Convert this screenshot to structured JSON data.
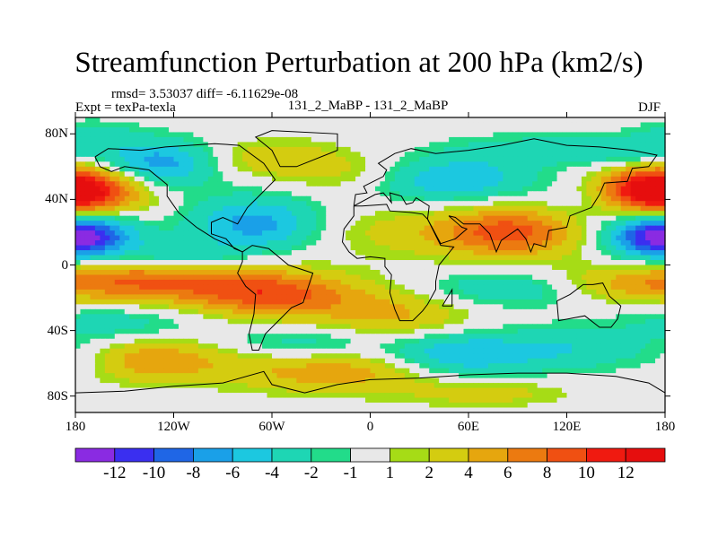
{
  "chart_data": {
    "type": "heatmap",
    "title": "Streamfunction Perturbation at 200 hPa (km2/s)",
    "stats_line": "rmsd= 3.53037 diff= -6.11629e-08",
    "experiment_label": "Expt = texPa-texla",
    "run_label": "131_2_MaBP - 131_2_MaBP",
    "season_label": "DJF",
    "x_ticks": [
      {
        "value": -180,
        "label": "180"
      },
      {
        "value": -120,
        "label": "120W"
      },
      {
        "value": -60,
        "label": "60W"
      },
      {
        "value": 0,
        "label": "0"
      },
      {
        "value": 60,
        "label": "60E"
      },
      {
        "value": 120,
        "label": "120E"
      },
      {
        "value": 180,
        "label": "180"
      }
    ],
    "y_ticks": [
      {
        "value": 80,
        "label": "80N"
      },
      {
        "value": 40,
        "label": "40N"
      },
      {
        "value": 0,
        "label": "0"
      },
      {
        "value": -40,
        "label": "40S"
      },
      {
        "value": -80,
        "label": "80S"
      }
    ],
    "xlim": [
      -180,
      180
    ],
    "ylim": [
      -90,
      90
    ],
    "colorbar": {
      "levels": [
        -12,
        -10,
        -8,
        -6,
        -4,
        -2,
        -1,
        1,
        2,
        4,
        6,
        8,
        10,
        12
      ],
      "labels": [
        "-12",
        "-10",
        "-8",
        "-6",
        "-4",
        "-2",
        "-1",
        "1",
        "2",
        "4",
        "6",
        "8",
        "10",
        "12"
      ],
      "colors": [
        "#8a2be2",
        "#3a2ff0",
        "#1f66e6",
        "#1aa0e8",
        "#1cc8e0",
        "#1ed6b4",
        "#22dc8a",
        "#e8e8e8",
        "#a6dc16",
        "#d4cc10",
        "#e6a60e",
        "#ec7a10",
        "#f05012",
        "#f01a10",
        "#e60e0e"
      ]
    },
    "features": [
      {
        "lon": -175,
        "lat": 45,
        "amp": 10.5,
        "slon": 26,
        "slat": 11
      },
      {
        "lon": -130,
        "lat": 62,
        "amp": -7.5,
        "slon": 26,
        "slat": 10
      },
      {
        "lon": -175,
        "lat": 18,
        "amp": -8.5,
        "slon": 24,
        "slat": 10
      },
      {
        "lon": -115,
        "lat": 5,
        "amp": -4.5,
        "slon": 22,
        "slat": 6
      },
      {
        "lon": -60,
        "lat": 65,
        "amp": 3.5,
        "slon": 30,
        "slat": 8
      },
      {
        "lon": -70,
        "lat": 25,
        "amp": -7,
        "slon": 28,
        "slat": 12
      },
      {
        "lon": -5,
        "lat": 55,
        "amp": 3,
        "slon": 32,
        "slat": 9
      },
      {
        "lon": 15,
        "lat": 20,
        "amp": 2.5,
        "slon": 35,
        "slat": 11
      },
      {
        "lon": 45,
        "lat": 52,
        "amp": -6.5,
        "slon": 36,
        "slat": 10
      },
      {
        "lon": 85,
        "lat": 20,
        "amp": 9,
        "slon": 30,
        "slat": 11
      },
      {
        "lon": 105,
        "lat": 70,
        "amp": -3,
        "slon": 40,
        "slat": 7
      },
      {
        "lon": 170,
        "lat": 45,
        "amp": 8,
        "slon": 22,
        "slat": 11
      },
      {
        "lon": 175,
        "lat": 18,
        "amp": -7,
        "slon": 22,
        "slat": 10
      },
      {
        "lon": 165,
        "lat": 68,
        "amp": -3.5,
        "slon": 22,
        "slat": 7
      },
      {
        "lon": 140,
        "lat": 38,
        "amp": -1.5,
        "slon": 25,
        "slat": 9
      },
      {
        "lon": -140,
        "lat": -10,
        "amp": 8,
        "slon": 45,
        "slat": 9
      },
      {
        "lon": -60,
        "lat": -18,
        "amp": 8.5,
        "slon": 35,
        "slat": 10
      },
      {
        "lon": -40,
        "lat": -48,
        "amp": -3.5,
        "slon": 35,
        "slat": 8
      },
      {
        "lon": -155,
        "lat": -35,
        "amp": -3,
        "slon": 35,
        "slat": 8
      },
      {
        "lon": -140,
        "lat": -58,
        "amp": 6,
        "slon": 40,
        "slat": 9
      },
      {
        "lon": -175,
        "lat": -58,
        "amp": -3,
        "slon": 20,
        "slat": 8
      },
      {
        "lon": -20,
        "lat": -65,
        "amp": 5.5,
        "slon": 45,
        "slat": 9
      },
      {
        "lon": 15,
        "lat": -30,
        "amp": 4.5,
        "slon": 35,
        "slat": 12
      },
      {
        "lon": 80,
        "lat": -15,
        "amp": -4,
        "slon": 40,
        "slat": 8
      },
      {
        "lon": 50,
        "lat": -55,
        "amp": -6,
        "slon": 30,
        "slat": 10
      },
      {
        "lon": 125,
        "lat": -52,
        "amp": -4,
        "slon": 40,
        "slat": 10
      },
      {
        "lon": 70,
        "lat": -78,
        "amp": 3,
        "slon": 35,
        "slat": 6
      },
      {
        "lon": 150,
        "lat": -12,
        "amp": 3,
        "slon": 30,
        "slat": 8
      },
      {
        "lon": -170,
        "lat": 80,
        "amp": -2.5,
        "slon": 20,
        "slat": 6
      }
    ]
  }
}
